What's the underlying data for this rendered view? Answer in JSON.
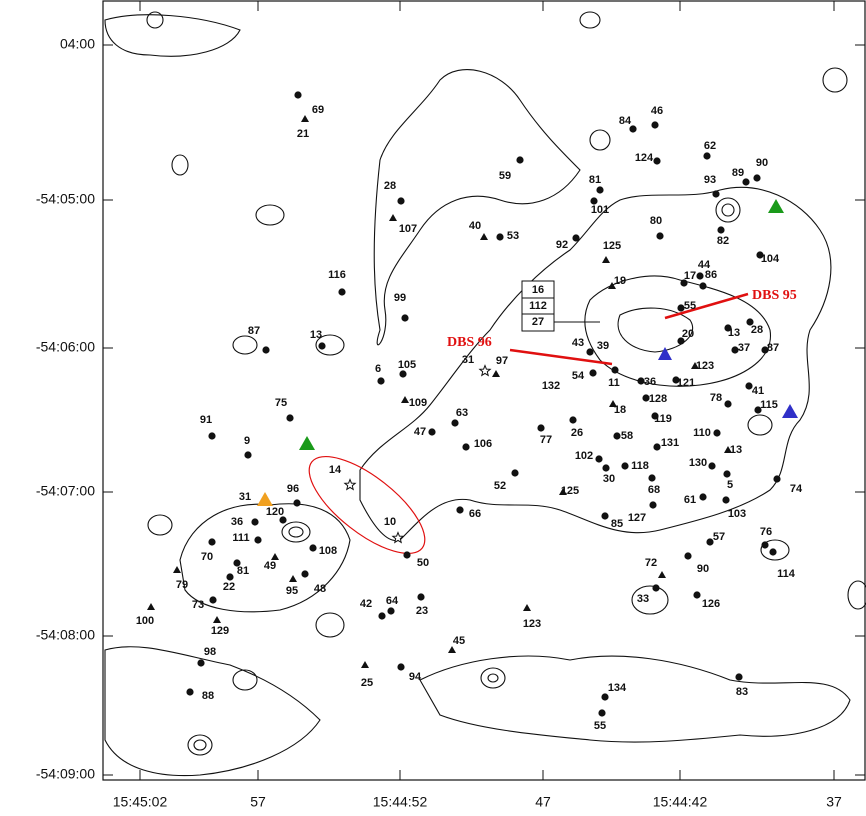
{
  "axes": {
    "x_ticks": [
      "15:45:02",
      "57",
      "15:44:52",
      "47",
      "15:44:42",
      "37"
    ],
    "y_ticks": [
      "04:00",
      "-54:05:00",
      "-54:06:00",
      "-54:07:00",
      "-54:08:00",
      "-54:09:00"
    ]
  },
  "labels": {
    "annotations": [
      "DBS 95",
      "DBS 96"
    ],
    "box": [
      "16",
      "112",
      "27"
    ],
    "sources": [
      "69",
      "21",
      "46",
      "84",
      "62",
      "124",
      "59",
      "90",
      "93",
      "89",
      "81",
      "28",
      "101",
      "107",
      "40",
      "53",
      "80",
      "92",
      "125",
      "82",
      "104",
      "44",
      "86",
      "116",
      "99",
      "13",
      "87",
      "19",
      "17",
      "55",
      "43",
      "39",
      "20",
      "13",
      "28",
      "37",
      "87",
      "31",
      "97",
      "105",
      "6",
      "109",
      "54",
      "11",
      "36",
      "121",
      "123",
      "132",
      "41",
      "78",
      "128",
      "115",
      "63",
      "47",
      "18",
      "119",
      "26",
      "58",
      "106",
      "131",
      "110",
      "77",
      "102",
      "118",
      "30",
      "130",
      "13",
      "52",
      "68",
      "5",
      "125",
      "74",
      "61",
      "103",
      "127",
      "85",
      "66",
      "76",
      "57",
      "90",
      "114",
      "72",
      "33",
      "126",
      "91",
      "75",
      "9",
      "14",
      "10",
      "50",
      "96",
      "31",
      "120",
      "36",
      "111",
      "108",
      "70",
      "81",
      "22",
      "49",
      "95",
      "48",
      "79",
      "73",
      "100",
      "129",
      "98",
      "88",
      "42",
      "64",
      "23",
      "123",
      "45",
      "25",
      "94",
      "134",
      "55",
      "83"
    ]
  }
}
